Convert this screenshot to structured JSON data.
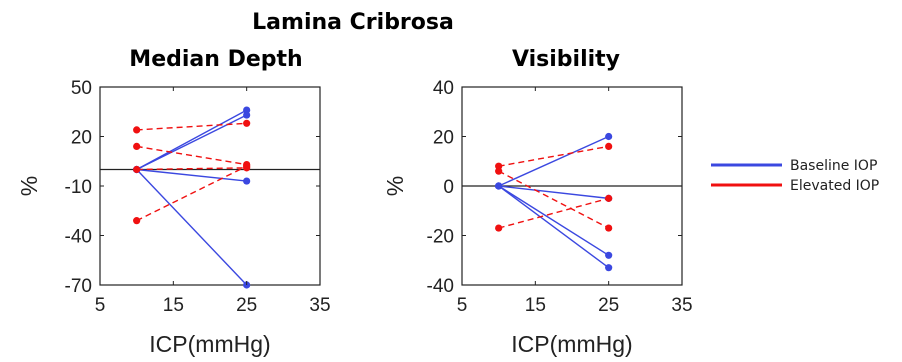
{
  "figure": {
    "title": "Lamina Cribrosa"
  },
  "legend": {
    "entries": [
      {
        "name": "Baseline IOP",
        "color": "#3b48e0"
      },
      {
        "name": "Elevated IOP",
        "color": "#f01010"
      }
    ]
  },
  "chart_data": [
    {
      "type": "line",
      "title": "Median Depth",
      "xlabel": "ICP(mmHg)",
      "ylabel": "%",
      "xlim": [
        5,
        35
      ],
      "ylim": [
        -70,
        50
      ],
      "xticks": [
        5,
        15,
        25,
        35
      ],
      "yticks": [
        50,
        20,
        -10,
        -40,
        -70
      ],
      "reference_line_y": 0,
      "grid": false,
      "series": [
        {
          "name": "Baseline IOP",
          "line_style": "solid",
          "color": "#3b48e0",
          "lines": [
            [
              [
                10,
                0
              ],
              [
                25,
                36
              ]
            ],
            [
              [
                10,
                0
              ],
              [
                25,
                33
              ]
            ],
            [
              [
                10,
                0
              ],
              [
                25,
                -7
              ]
            ],
            [
              [
                10,
                0
              ],
              [
                25,
                -70
              ]
            ]
          ]
        },
        {
          "name": "Elevated IOP",
          "line_style": "dashed",
          "color": "#f01010",
          "lines": [
            [
              [
                10,
                24
              ],
              [
                25,
                28
              ]
            ],
            [
              [
                10,
                14
              ],
              [
                25,
                3
              ]
            ],
            [
              [
                10,
                0
              ],
              [
                25,
                1
              ]
            ],
            [
              [
                10,
                -31
              ],
              [
                25,
                2
              ]
            ]
          ]
        }
      ]
    },
    {
      "type": "line",
      "title": "Visibility",
      "xlabel": "ICP(mmHg)",
      "ylabel": "%",
      "xlim": [
        5,
        35
      ],
      "ylim": [
        -40,
        40
      ],
      "xticks": [
        5,
        15,
        25,
        35
      ],
      "yticks": [
        40,
        20,
        0,
        -20,
        -40
      ],
      "reference_line_y": 0,
      "grid": false,
      "series": [
        {
          "name": "Baseline IOP",
          "line_style": "solid",
          "color": "#3b48e0",
          "lines": [
            [
              [
                10,
                0
              ],
              [
                25,
                20
              ]
            ],
            [
              [
                10,
                0
              ],
              [
                25,
                -5
              ]
            ],
            [
              [
                10,
                0
              ],
              [
                25,
                -28
              ]
            ],
            [
              [
                10,
                0
              ],
              [
                25,
                -33
              ]
            ]
          ]
        },
        {
          "name": "Elevated IOP",
          "line_style": "dashed",
          "color": "#f01010",
          "lines": [
            [
              [
                10,
                8
              ],
              [
                25,
                16
              ]
            ],
            [
              [
                10,
                6
              ],
              [
                25,
                -17
              ]
            ],
            [
              [
                10,
                -17
              ],
              [
                25,
                -5
              ]
            ]
          ]
        }
      ]
    }
  ]
}
